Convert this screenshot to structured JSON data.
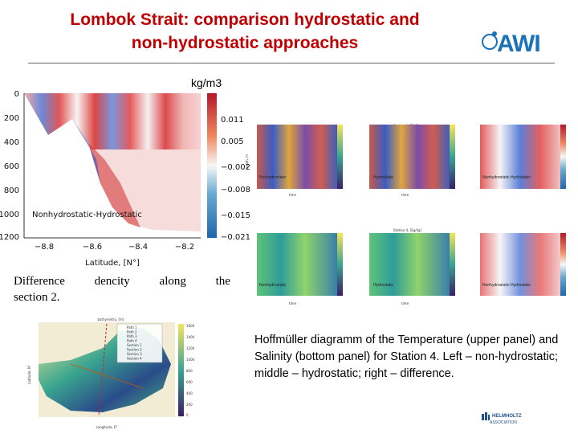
{
  "slide": {
    "title_line1": "Lombok Strait: comparison hydrostatic and",
    "title_line2": "non-hydrostatic approaches",
    "logo_text": "AWI",
    "unit_label": "kg/m3"
  },
  "left_plot": {
    "y_ticks": [
      "0",
      "200",
      "400",
      "600",
      "800",
      "1000",
      "1200"
    ],
    "x_ticks": [
      "−8.8",
      "−8.6",
      "−8.4",
      "−8.2"
    ],
    "xlabel": "Latitude, [N°]",
    "annotation": "Nonhydrostatic-Hydrostatic",
    "colorbar_ticks": [
      "0.011",
      "0.005",
      "−0.002",
      "−0.008",
      "−0.015",
      "−0.021"
    ]
  },
  "caption_left": {
    "words": [
      "Difference",
      "dencity",
      "along",
      "the"
    ],
    "line2": "section 2."
  },
  "hovmoller": {
    "top_title": "Station 4, T[°C]",
    "bottom_title": "Station 4, S[g/kg]",
    "labels": [
      "Nonhydrostatic",
      "Hydrostatic",
      "Nonhydrostatic-Hydrostatic"
    ],
    "xlabel": "time",
    "ylabel": "depth, m"
  },
  "map": {
    "title": "bathymetry, [m]",
    "legend": [
      "Path 1",
      "Path 2",
      "Path 3",
      "Path 4",
      "Section 1",
      "Section 2",
      "Section 3",
      "Section 4"
    ],
    "xlabel": "Longitude, E°",
    "ylabel": "Latitude, N°",
    "colorbar_ticks": [
      "1600",
      "1400",
      "1200",
      "1000",
      "800",
      "600",
      "400",
      "200",
      "0"
    ]
  },
  "caption_right": "Hoffmüller diagramm of the Temperature (upper panel) and Salinity (bottom panel) for Station 4. Left – non-hydrostatic; middle – hydrostatic; right – difference.",
  "footer": {
    "org_name": "HELMHOLTZ",
    "org_sub": "ASSOCIATION"
  }
}
